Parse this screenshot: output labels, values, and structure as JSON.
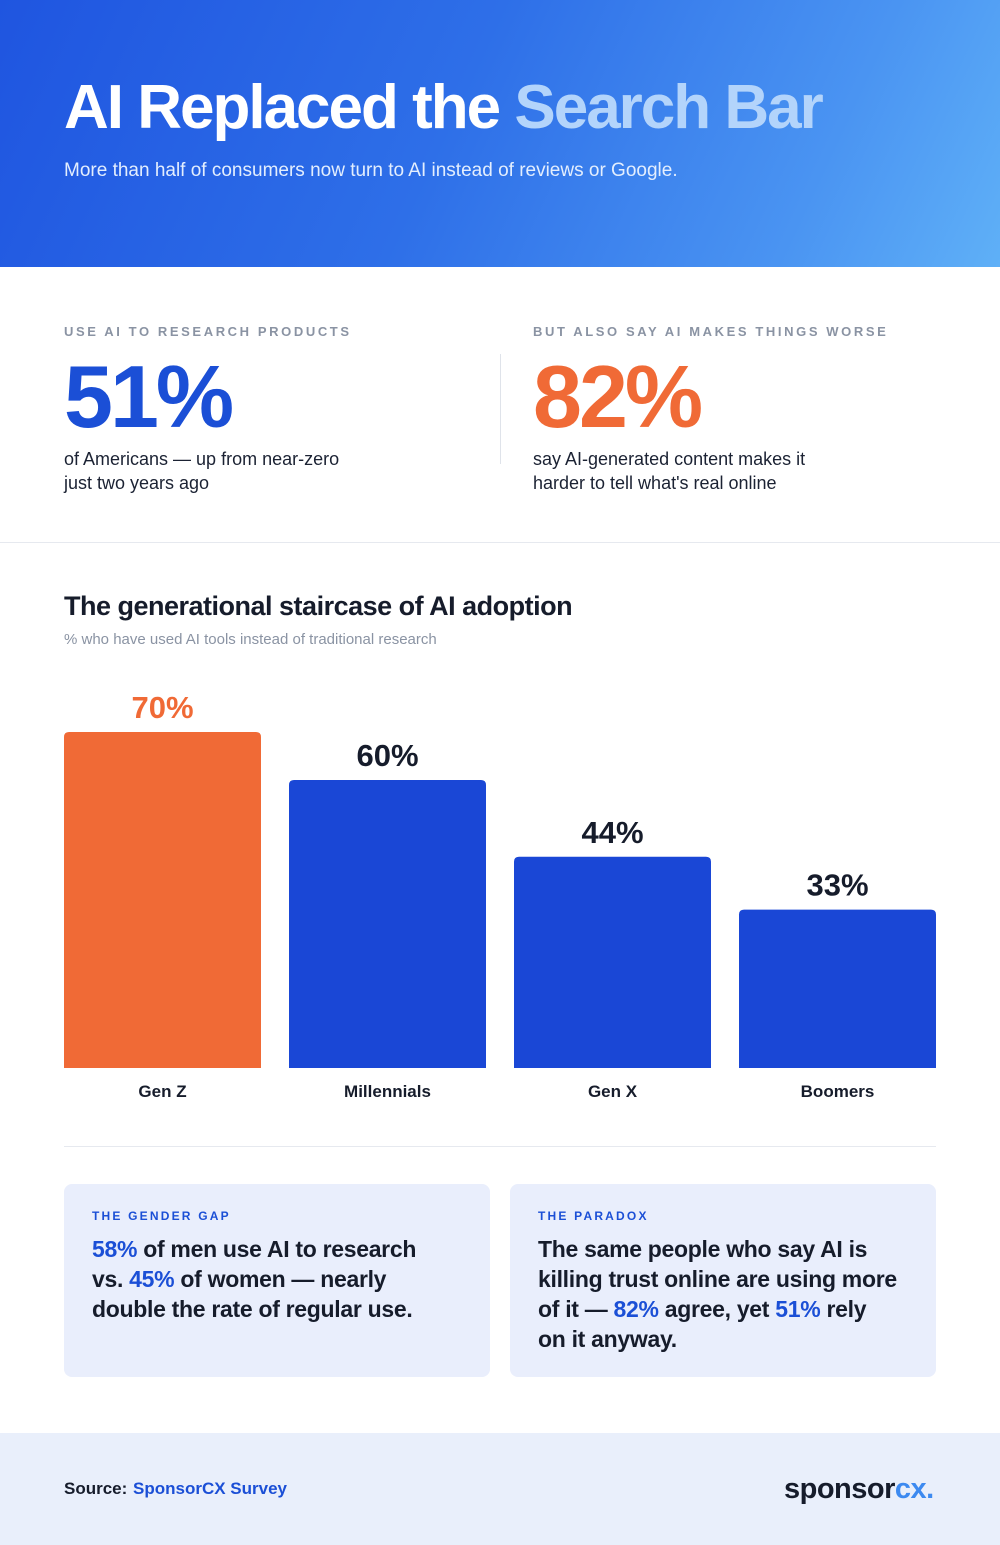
{
  "header": {
    "title_main": "AI Replaced the",
    "title_accent": "Search Bar",
    "subtitle": "More than half of consumers now turn to AI instead of reviews or Google."
  },
  "stats": [
    {
      "label": "USE AI TO RESEARCH PRODUCTS",
      "value": "51%",
      "description": "of Americans — up from near-zero just two years ago"
    },
    {
      "label": "BUT ALSO SAY AI MAKES THINGS WORSE",
      "value": "82%",
      "description": "say AI-generated content makes it harder to tell what's real online"
    }
  ],
  "chart": {
    "title": "The generational staircase of AI adoption",
    "subtitle": "% who have used AI tools instead of traditional research"
  },
  "chart_data": {
    "type": "bar",
    "categories": [
      "Gen Z",
      "Millennials",
      "Gen X",
      "Boomers"
    ],
    "values": [
      70,
      60,
      44,
      33
    ],
    "data_labels": [
      "70%",
      "60%",
      "44%",
      "33%"
    ],
    "title": "The generational staircase of AI adoption",
    "subtitle": "% who have used AI tools instead of traditional research",
    "unit": "%",
    "ylim": [
      0,
      100
    ],
    "grid": false,
    "highlight_category": "Gen Z",
    "colors": {
      "default": "#1a47d6",
      "highlight": "#f06a36",
      "label_default": "#161c2b",
      "label_highlight": "#f06a36"
    }
  },
  "cards": [
    {
      "label": "THE GENDER GAP",
      "segments": [
        {
          "text": "58%",
          "hl": true
        },
        {
          "text": " of men use AI to research vs. ",
          "hl": false
        },
        {
          "text": "45%",
          "hl": true
        },
        {
          "text": " of women — nearly double the rate of regular use.",
          "hl": false
        }
      ]
    },
    {
      "label": "THE PARADOX",
      "segments": [
        {
          "text": "The same people who say AI is killing trust online are using more of it — ",
          "hl": false
        },
        {
          "text": "82%",
          "hl": true
        },
        {
          "text": " agree, yet ",
          "hl": false
        },
        {
          "text": "51%",
          "hl": true
        },
        {
          "text": " rely on it anyway.",
          "hl": false
        }
      ]
    }
  ],
  "footer": {
    "source_label": "Source:",
    "source_value": "SponsorCX Survey",
    "logo_part1": "sponsor",
    "logo_part2": "cx."
  },
  "colors": {
    "brand_blue": "#1b4fd6",
    "accent_orange": "#f06a36",
    "card_bg": "#e9eefc"
  }
}
